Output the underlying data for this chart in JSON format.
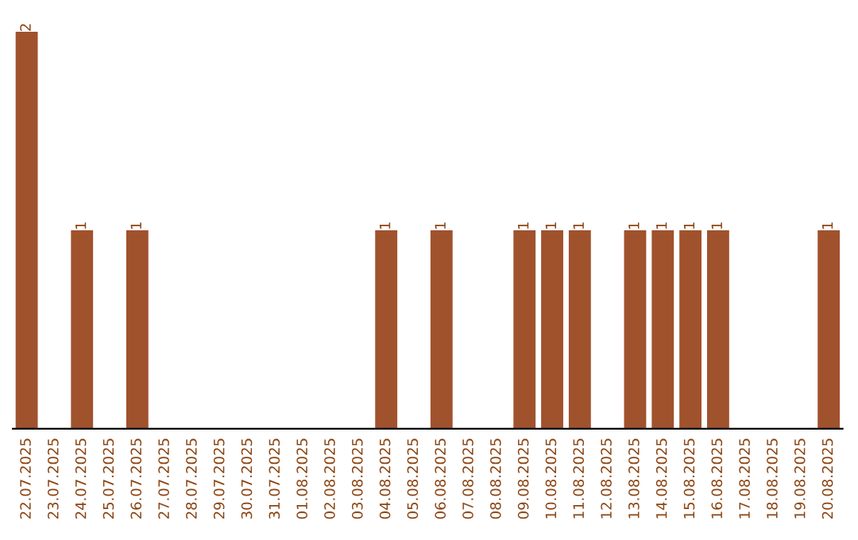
{
  "chart_data": {
    "type": "bar",
    "categories": [
      "22.07.2025",
      "23.07.2025",
      "24.07.2025",
      "25.07.2025",
      "26.07.2025",
      "27.07.2025",
      "28.07.2025",
      "29.07.2025",
      "30.07.2025",
      "31.07.2025",
      "01.08.2025",
      "02.08.2025",
      "03.08.2025",
      "04.08.2025",
      "05.08.2025",
      "06.08.2025",
      "07.08.2025",
      "08.08.2025",
      "09.08.2025",
      "10.08.2025",
      "11.08.2025",
      "12.08.2025",
      "13.08.2025",
      "14.08.2025",
      "15.08.2025",
      "16.08.2025",
      "17.08.2025",
      "18.08.2025",
      "19.08.2025",
      "20.08.2025"
    ],
    "values": [
      2,
      0,
      1,
      0,
      1,
      0,
      0,
      0,
      0,
      0,
      0,
      0,
      0,
      1,
      0,
      1,
      0,
      0,
      1,
      1,
      1,
      0,
      1,
      1,
      1,
      1,
      0,
      0,
      0,
      1
    ],
    "value_labels": [
      "2",
      null,
      "1",
      null,
      "1",
      null,
      null,
      null,
      null,
      null,
      null,
      null,
      null,
      "1",
      null,
      "1",
      null,
      null,
      "1",
      "1",
      "1",
      null,
      "1",
      "1",
      "1",
      "1",
      null,
      null,
      null,
      "1"
    ],
    "color": "#a0522d",
    "ylim": [
      0,
      2
    ],
    "tick_labels": "x",
    "grid": false,
    "legend": false
  }
}
